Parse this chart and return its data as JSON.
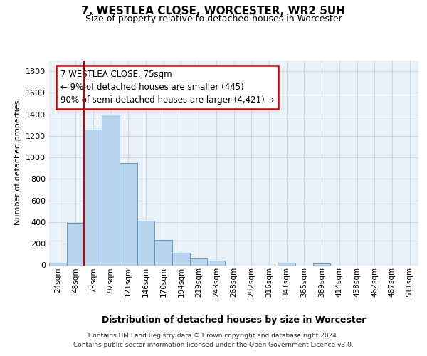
{
  "title": "7, WESTLEA CLOSE, WORCESTER, WR2 5UH",
  "subtitle": "Size of property relative to detached houses in Worcester",
  "xlabel": "Distribution of detached houses by size in Worcester",
  "ylabel": "Number of detached properties",
  "bar_color": "#b8d4ec",
  "bar_edge_color": "#6699cc",
  "categories": [
    "24sqm",
    "48sqm",
    "73sqm",
    "97sqm",
    "121sqm",
    "146sqm",
    "170sqm",
    "194sqm",
    "219sqm",
    "243sqm",
    "268sqm",
    "292sqm",
    "316sqm",
    "341sqm",
    "365sqm",
    "389sqm",
    "414sqm",
    "438sqm",
    "462sqm",
    "487sqm",
    "511sqm"
  ],
  "values": [
    25,
    390,
    1260,
    1395,
    950,
    415,
    235,
    115,
    65,
    45,
    0,
    0,
    0,
    20,
    0,
    15,
    0,
    0,
    0,
    0,
    0
  ],
  "vline_pos": 2.0,
  "vline_color": "#cc0000",
  "annotation_line1": "7 WESTLEA CLOSE: 75sqm",
  "annotation_line2": "← 9% of detached houses are smaller (445)",
  "annotation_line3": "90% of semi-detached houses are larger (4,421) →",
  "ylim": [
    0,
    1900
  ],
  "yticks": [
    0,
    200,
    400,
    600,
    800,
    1000,
    1200,
    1400,
    1600,
    1800
  ],
  "bg_axes": "#e8f0f8",
  "grid_color": "#c8ccd8",
  "footer_line1": "Contains HM Land Registry data © Crown copyright and database right 2024.",
  "footer_line2": "Contains public sector information licensed under the Open Government Licence v3.0."
}
